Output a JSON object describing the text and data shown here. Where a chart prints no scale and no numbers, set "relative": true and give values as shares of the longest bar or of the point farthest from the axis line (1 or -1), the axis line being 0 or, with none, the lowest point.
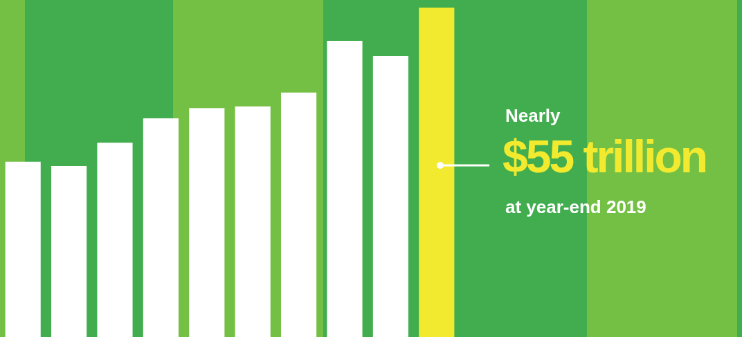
{
  "chart_data": {
    "type": "bar",
    "relative": true,
    "categories": [
      null,
      null,
      null,
      null,
      null,
      null,
      null,
      null,
      null,
      null
    ],
    "values": [
      0.532,
      0.519,
      0.59,
      0.664,
      0.695,
      0.7,
      0.742,
      0.899,
      0.853,
      1
    ],
    "colors": [
      "#ffffff",
      "#ffffff",
      "#ffffff",
      "#ffffff",
      "#ffffff",
      "#ffffff",
      "#ffffff",
      "#ffffff",
      "#ffffff",
      "#f2ea2e"
    ],
    "annotations": [
      "Nearly",
      "$55 trillion",
      "at year-end 2019"
    ]
  }
}
